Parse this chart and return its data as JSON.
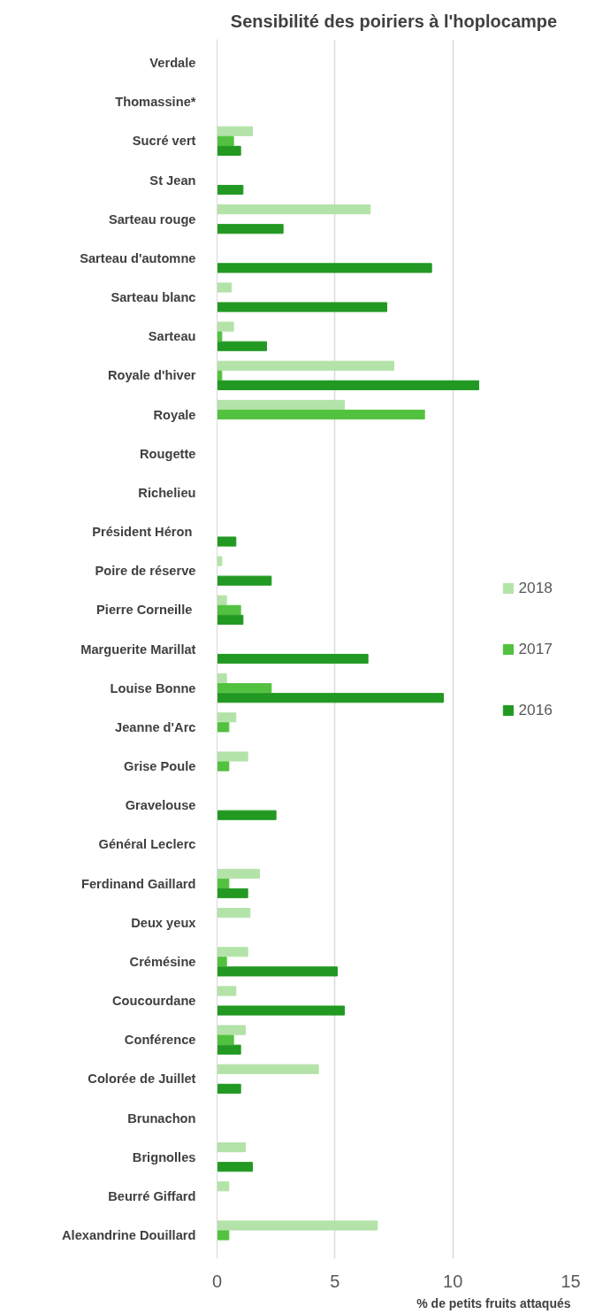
{
  "chart_data": {
    "type": "bar",
    "orientation": "horizontal",
    "title": "Sensibilité des poiriers à l'hoplocampe",
    "xlabel": "% de petits fruits attaqués",
    "categories": [
      "Verdale",
      "Thomassine*",
      "Sucré vert",
      "St Jean",
      "Sarteau rouge",
      "Sarteau d'automne",
      "Sarteau blanc",
      "Sarteau",
      "Royale d'hiver",
      "Royale",
      "Rougette",
      "Richelieu",
      "Président  Héron",
      "Poire de réserve",
      "Pierre  Corneille",
      "Marguerite Marillat",
      "Louise Bonne",
      "Jeanne d'Arc",
      "Grise Poule",
      "Gravelouse",
      "Général Leclerc",
      "Ferdinand Gaillard",
      "Deux yeux",
      "Crémésine",
      "Coucourdane",
      "Conférence",
      "Colorée de Juillet",
      "Brunachon",
      "Brignolles",
      "Beurré Giffard",
      "Alexandrine Douillard"
    ],
    "series": [
      {
        "name": "2018",
        "color": "#b3e3a8",
        "values": [
          null,
          null,
          1.5,
          null,
          6.5,
          null,
          0.6,
          0.7,
          7.5,
          5.4,
          null,
          null,
          null,
          0.2,
          0.4,
          null,
          0.4,
          0.8,
          1.3,
          null,
          null,
          1.8,
          1.4,
          1.3,
          0.8,
          1.2,
          4.3,
          null,
          1.2,
          0.5,
          6.8
        ]
      },
      {
        "name": "2017",
        "color": "#52c13f",
        "values": [
          null,
          null,
          0.7,
          null,
          null,
          null,
          null,
          0.2,
          0.2,
          8.8,
          null,
          null,
          null,
          null,
          1.0,
          null,
          2.3,
          0.5,
          0.5,
          null,
          null,
          0.5,
          null,
          0.4,
          null,
          0.7,
          null,
          null,
          null,
          null,
          0.5
        ]
      },
      {
        "name": "2016",
        "color": "#229922",
        "values": [
          null,
          null,
          1.0,
          1.1,
          2.8,
          9.1,
          7.2,
          2.1,
          11.1,
          null,
          null,
          null,
          0.8,
          2.3,
          1.1,
          6.4,
          9.6,
          null,
          null,
          2.5,
          null,
          1.3,
          null,
          5.1,
          5.4,
          1.0,
          1.0,
          null,
          1.5,
          null,
          null
        ]
      }
    ],
    "xlim": [
      0,
      15
    ],
    "xticks": [
      0,
      5,
      10,
      15
    ],
    "grid": "x",
    "legend": "right"
  }
}
